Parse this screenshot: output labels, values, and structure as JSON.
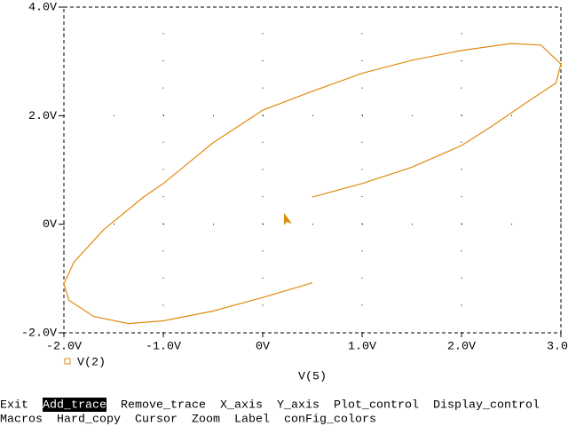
{
  "chart_data": {
    "type": "line",
    "x": [
      0.5,
      0.0,
      -0.5,
      -1.0,
      -1.35,
      -1.7,
      -1.95,
      -2.0,
      -1.9,
      -1.6,
      -1.2,
      -1.0,
      -0.5,
      0.0,
      0.5,
      1.0,
      1.5,
      2.0,
      2.5,
      2.8,
      3.0,
      2.95,
      2.7,
      2.3,
      2.0,
      1.5,
      1.0,
      0.5
    ],
    "series": [
      {
        "name": "V(2)",
        "color": "#e08a10",
        "values": [
          -1.08,
          -1.35,
          -1.6,
          -1.78,
          -1.83,
          -1.7,
          -1.4,
          -1.1,
          -0.7,
          -0.1,
          0.5,
          0.75,
          1.5,
          2.1,
          2.45,
          2.78,
          3.02,
          3.2,
          3.33,
          3.3,
          2.95,
          2.6,
          2.3,
          1.8,
          1.45,
          1.05,
          0.75,
          0.5
        ]
      }
    ],
    "x_label": "V(5)",
    "xlim": [
      -2,
      3
    ],
    "ylim": [
      -2,
      4
    ],
    "xticks": [
      {
        "value": -2,
        "label": "-2.0V"
      },
      {
        "value": -1,
        "label": "-1.0V"
      },
      {
        "value": 0,
        "label": "0V"
      },
      {
        "value": 1,
        "label": "1.0V"
      },
      {
        "value": 2,
        "label": "2.0V"
      },
      {
        "value": 3,
        "label": "3.0V"
      }
    ],
    "yticks": [
      {
        "value": -2,
        "label": "-2.0V"
      },
      {
        "value": 0,
        "label": "0V"
      },
      {
        "value": 2,
        "label": "2.0V"
      },
      {
        "value": 4,
        "label": "4.0V"
      }
    ],
    "grid": true
  },
  "menu": {
    "rows": [
      [
        "Exit",
        "Add_trace",
        "Remove_trace",
        "X_axis",
        "Y_axis",
        "Plot_control",
        "Display_control"
      ],
      [
        "Macros",
        "Hard_copy",
        "Cursor",
        "Zoom",
        "Label",
        "conFig_colors"
      ]
    ],
    "active": [
      0,
      1
    ]
  }
}
